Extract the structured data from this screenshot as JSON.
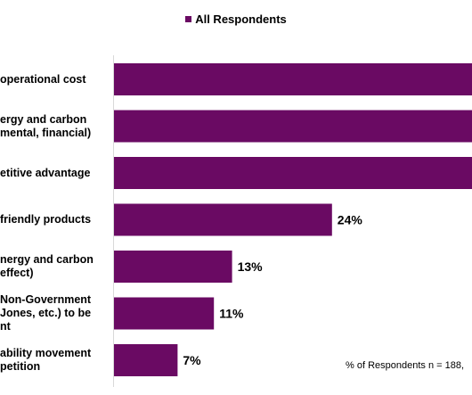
{
  "legend": {
    "label": "All Respondents",
    "color": "#6a0a63"
  },
  "footnote": "% of Respondents n = 188,",
  "chart_data": {
    "type": "bar",
    "orientation": "horizontal",
    "bar_color": "#6a0a63",
    "value_suffix": "%",
    "xlim": [
      0,
      35
    ],
    "categories": [
      [
        "operational cost"
      ],
      [
        "ergy and carbon",
        "mental, financial)"
      ],
      [
        "etitive advantage"
      ],
      [
        "friendly products"
      ],
      [
        "nergy and carbon",
        "effect)"
      ],
      [
        "Non-Government",
        "Jones, etc.) to be",
        "nt"
      ],
      [
        "ability movement",
        "petition"
      ]
    ],
    "values": [
      null,
      null,
      null,
      24,
      13,
      11,
      7
    ],
    "data_labels": [
      "",
      "",
      "",
      "24%",
      "13%",
      "11%",
      "7%"
    ]
  }
}
